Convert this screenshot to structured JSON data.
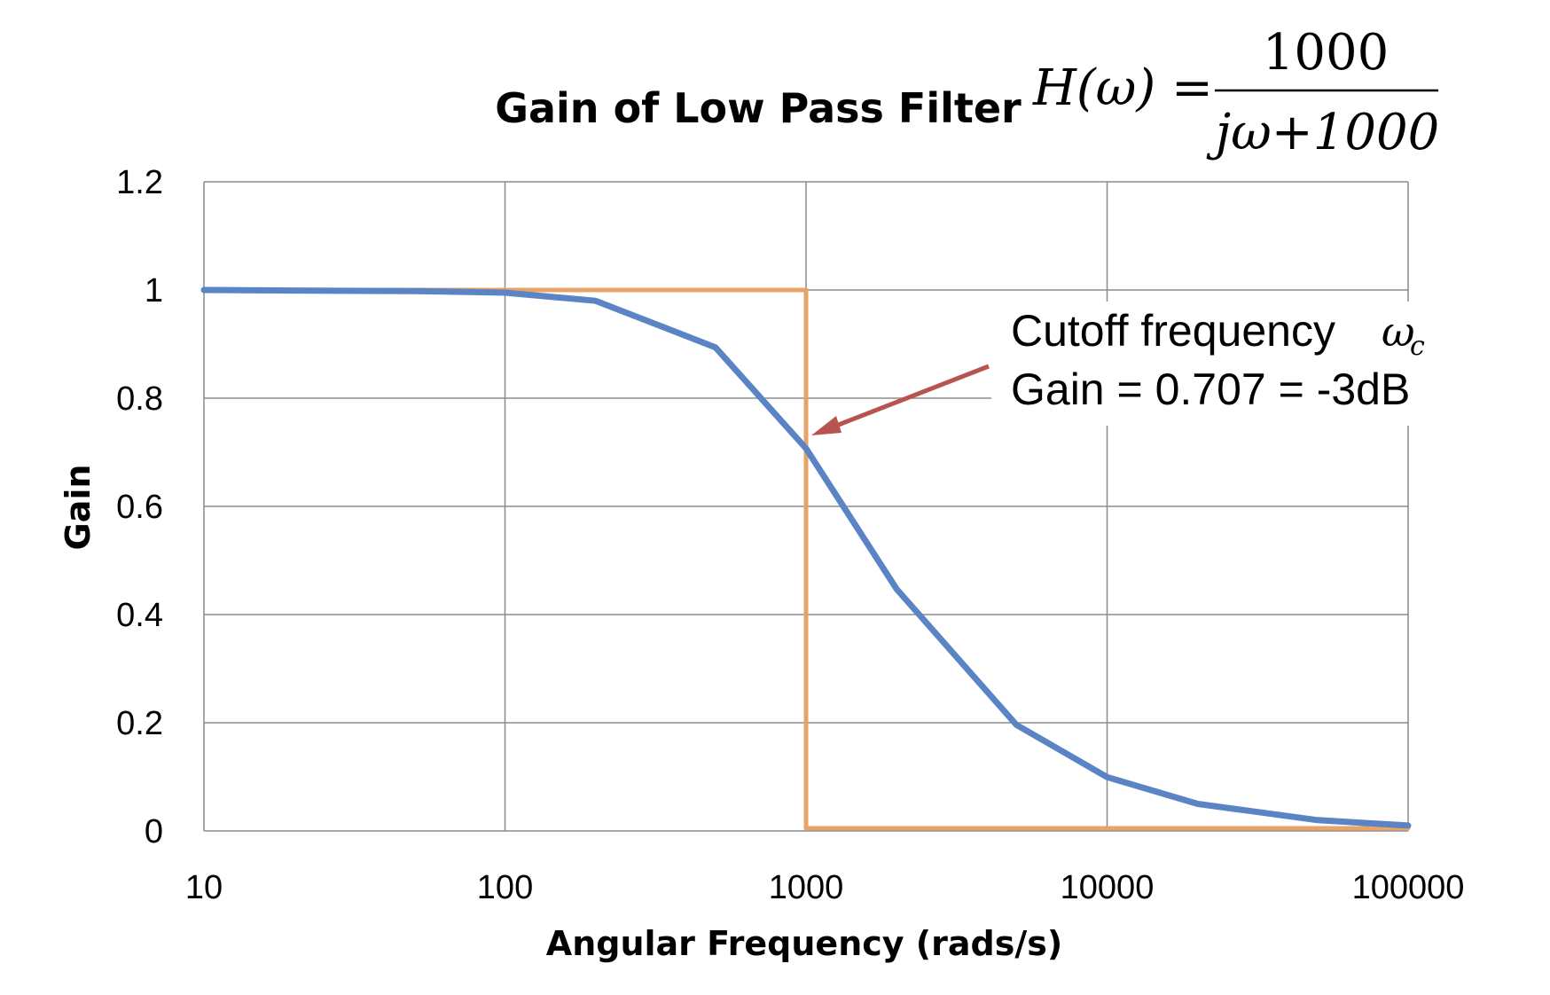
{
  "chart_data": {
    "type": "line",
    "title": "Gain of Low Pass Filter",
    "formula": {
      "lhs": "H(ω) =",
      "numerator": "1000",
      "denominator": "jω+1000"
    },
    "xlabel": "Angular Frequency (rads/s)",
    "ylabel": "Gain",
    "x_scale": "log",
    "xlim": [
      10,
      100000
    ],
    "ylim": [
      0,
      1.2
    ],
    "x_ticks": [
      10,
      100,
      1000,
      10000,
      100000
    ],
    "x_tick_labels": [
      "10",
      "100",
      "1000",
      "10000",
      "100000"
    ],
    "y_ticks": [
      0,
      0.2,
      0.4,
      0.6,
      0.8,
      1,
      1.2
    ],
    "y_tick_labels": [
      "0",
      "0.2",
      "0.4",
      "0.6",
      "0.8",
      "1",
      "1.2"
    ],
    "grid": true,
    "legend": "none",
    "series": [
      {
        "color": "#5b84c4",
        "x": [
          10,
          20,
          50,
          100,
          200,
          500,
          1000,
          2000,
          5000,
          10000,
          20000,
          50000,
          100000
        ],
        "y": [
          1.0,
          0.999,
          0.998,
          0.995,
          0.98,
          0.894,
          0.707,
          0.447,
          0.196,
          0.0995,
          0.05,
          0.02,
          0.01
        ]
      },
      {
        "color": "#e8a468",
        "x": [
          10,
          1000,
          1000,
          100000
        ],
        "y": [
          1.0,
          1.0,
          0.005,
          0.005
        ]
      }
    ],
    "annotation": {
      "line1": "Cutoff frequency",
      "symbol": "ω",
      "subscript": "c",
      "line2": "Gain = 0.707 = -3dB",
      "arrow_color": "#b85450",
      "target": {
        "x": 1000,
        "y": 0.707
      }
    }
  }
}
